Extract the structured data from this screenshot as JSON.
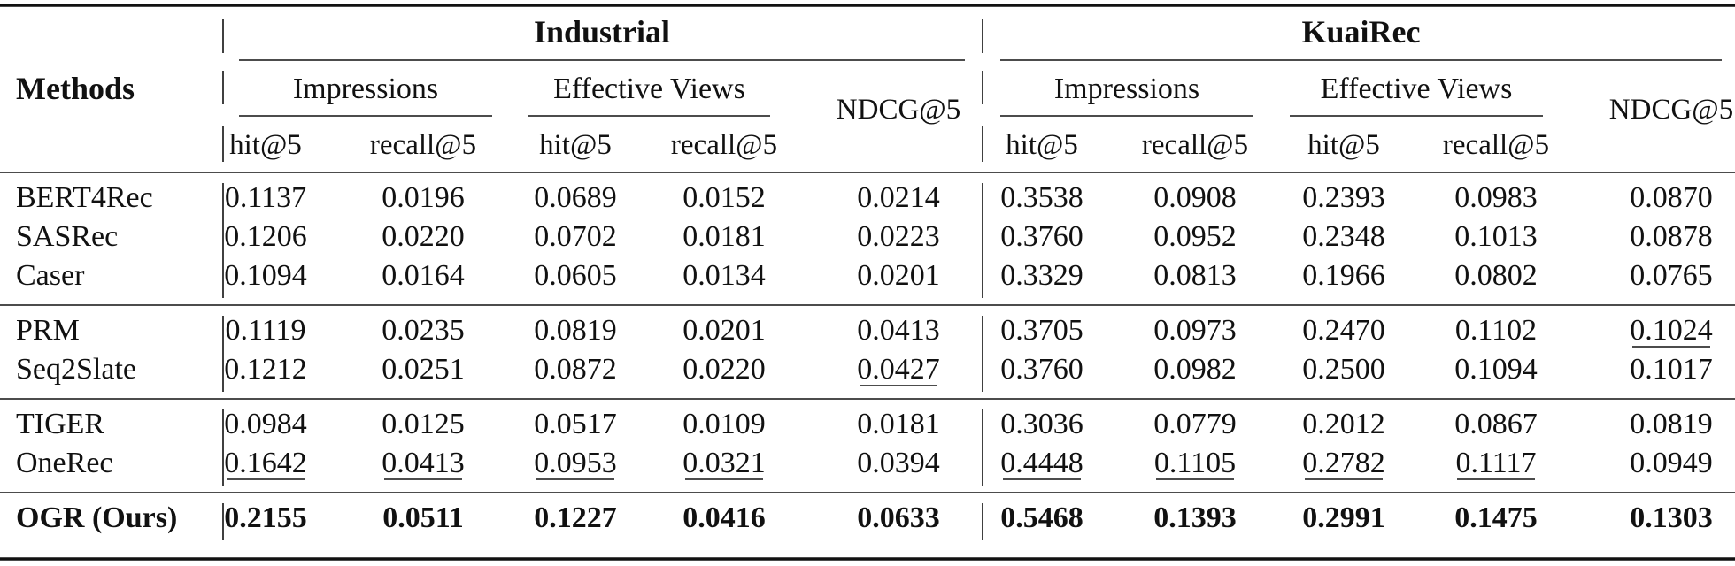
{
  "table": {
    "methods_header": "Methods",
    "datasets": [
      {
        "name": "Industrial",
        "groups": [
          {
            "label": "Impressions",
            "metrics": [
              "hit@5",
              "recall@5"
            ]
          },
          {
            "label": "Effective Views",
            "metrics": [
              "hit@5",
              "recall@5"
            ]
          }
        ],
        "extra_metric": "NDCG@5"
      },
      {
        "name": "KuaiRec",
        "groups": [
          {
            "label": "Impressions",
            "metrics": [
              "hit@5",
              "recall@5"
            ]
          },
          {
            "label": "Effective Views",
            "metrics": [
              "hit@5",
              "recall@5"
            ]
          }
        ],
        "extra_metric": "NDCG@5"
      }
    ],
    "sections": [
      {
        "rows": [
          {
            "method": "BERT4Rec",
            "values": [
              "0.1137",
              "0.0196",
              "0.0689",
              "0.0152",
              "0.0214",
              "0.3538",
              "0.0908",
              "0.2393",
              "0.0983",
              "0.0870"
            ],
            "underline": []
          },
          {
            "method": "SASRec",
            "values": [
              "0.1206",
              "0.0220",
              "0.0702",
              "0.0181",
              "0.0223",
              "0.3760",
              "0.0952",
              "0.2348",
              "0.1013",
              "0.0878"
            ],
            "underline": []
          },
          {
            "method": "Caser",
            "values": [
              "0.1094",
              "0.0164",
              "0.0605",
              "0.0134",
              "0.0201",
              "0.3329",
              "0.0813",
              "0.1966",
              "0.0802",
              "0.0765"
            ],
            "underline": []
          }
        ]
      },
      {
        "rows": [
          {
            "method": "PRM",
            "values": [
              "0.1119",
              "0.0235",
              "0.0819",
              "0.0201",
              "0.0413",
              "0.3705",
              "0.0973",
              "0.2470",
              "0.1102",
              "0.1024"
            ],
            "underline": [
              9
            ]
          },
          {
            "method": "Seq2Slate",
            "values": [
              "0.1212",
              "0.0251",
              "0.0872",
              "0.0220",
              "0.0427",
              "0.3760",
              "0.0982",
              "0.2500",
              "0.1094",
              "0.1017"
            ],
            "underline": [
              4
            ]
          }
        ]
      },
      {
        "rows": [
          {
            "method": "TIGER",
            "values": [
              "0.0984",
              "0.0125",
              "0.0517",
              "0.0109",
              "0.0181",
              "0.3036",
              "0.0779",
              "0.2012",
              "0.0867",
              "0.0819"
            ],
            "underline": []
          },
          {
            "method": "OneRec",
            "values": [
              "0.1642",
              "0.0413",
              "0.0953",
              "0.0321",
              "0.0394",
              "0.4448",
              "0.1105",
              "0.2782",
              "0.1117",
              "0.0949"
            ],
            "underline": [
              0,
              1,
              2,
              3,
              5,
              6,
              7,
              8
            ]
          }
        ]
      },
      {
        "bold": true,
        "rows": [
          {
            "method": "OGR (Ours)",
            "values": [
              "0.2155",
              "0.0511",
              "0.1227",
              "0.0416",
              "0.0633",
              "0.5468",
              "0.1393",
              "0.2991",
              "0.1475",
              "0.1303"
            ],
            "underline": []
          }
        ]
      }
    ]
  }
}
